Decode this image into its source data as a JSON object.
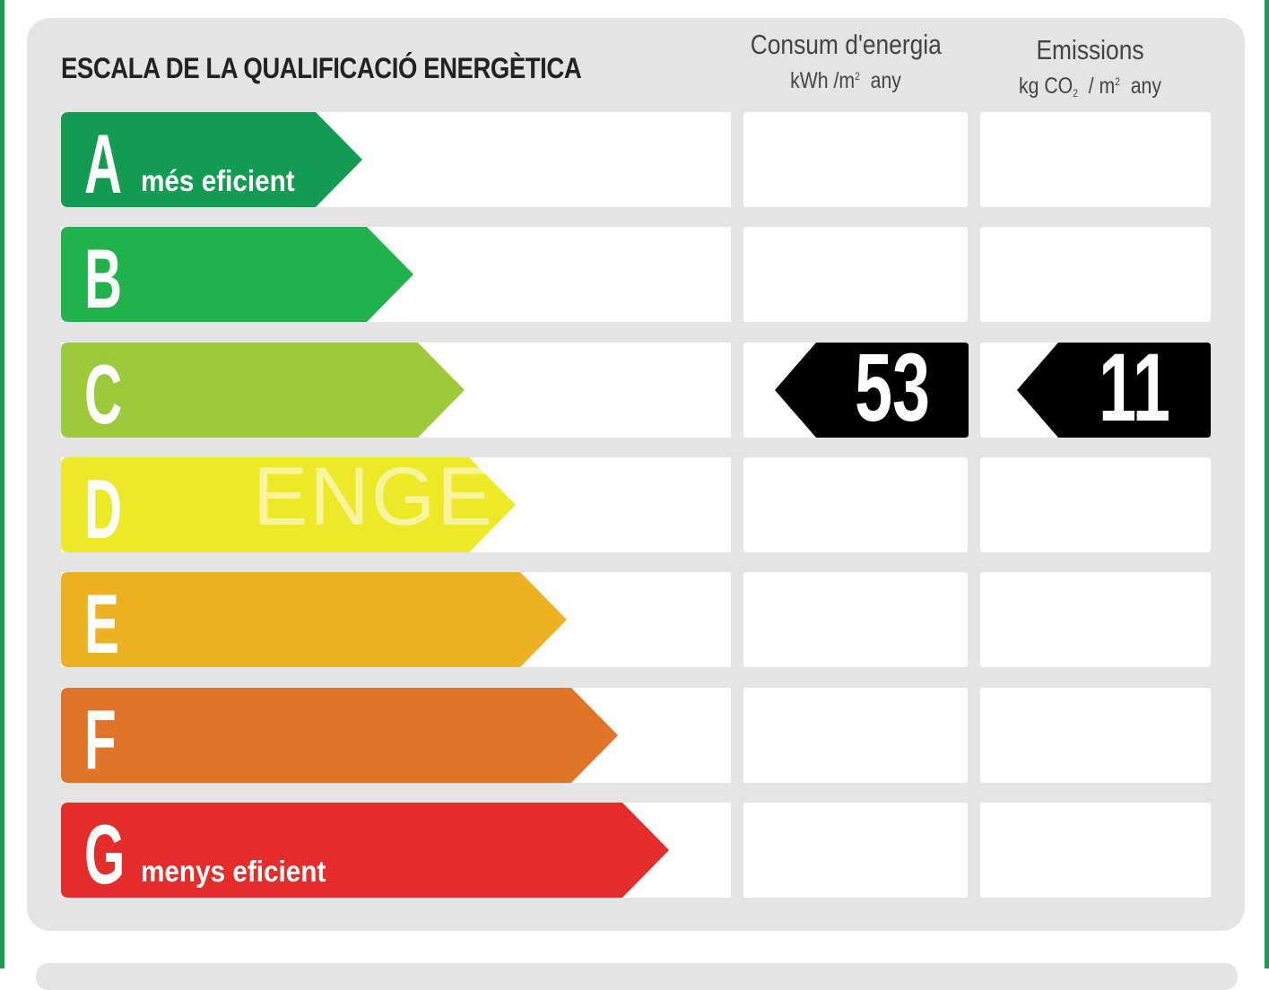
{
  "title": "ESCALA DE LA QUALIFICACIÓ ENERGÈTICA",
  "energy_header": {
    "label": "Consum d'energia",
    "unit_main": "kWh /m",
    "unit_sup": "2",
    "unit_tail": "any"
  },
  "emissions_header": {
    "label": "Emissions",
    "unit_a": "kg CO",
    "unit_sub": "2",
    "unit_b": "/ m",
    "unit_sup": "2",
    "unit_tail": "any"
  },
  "ratings": [
    {
      "letter": "A",
      "sublabel": "més eficient",
      "color": "#149b52"
    },
    {
      "letter": "B",
      "sublabel": "",
      "color": "#21b24b"
    },
    {
      "letter": "C",
      "sublabel": "",
      "color": "#9bcb3c"
    },
    {
      "letter": "D",
      "sublabel": "",
      "color": "#ece929"
    },
    {
      "letter": "E",
      "sublabel": "",
      "color": "#eeb121"
    },
    {
      "letter": "F",
      "sublabel": "",
      "color": "#e07528"
    },
    {
      "letter": "G",
      "sublabel": "menys eficient",
      "color": "#e42c2b"
    }
  ],
  "result": {
    "rating": "C",
    "energy_value": "53",
    "emissions_value": "11",
    "marker_color": "#000000"
  },
  "watermark": "ENGE"
}
